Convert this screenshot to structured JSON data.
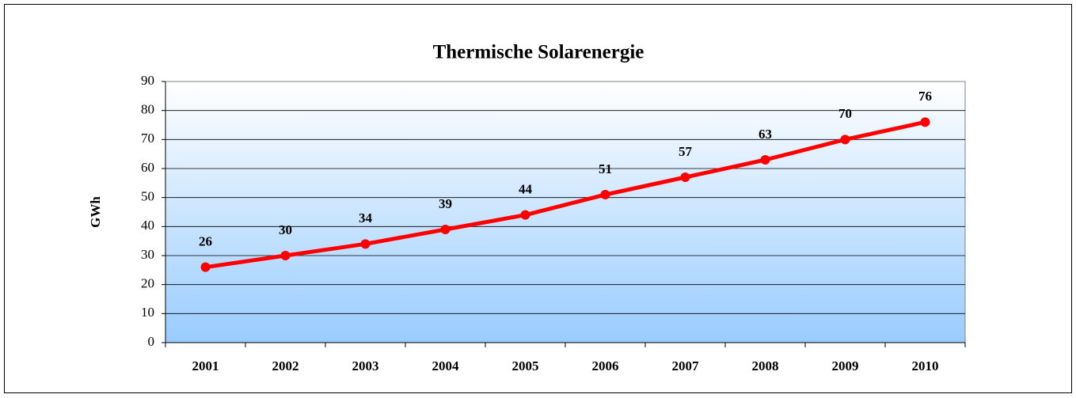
{
  "chart_data": {
    "type": "line",
    "title": "Thermische Solarenergie",
    "y_label": "GWh",
    "categories": [
      "2001",
      "2002",
      "2003",
      "2004",
      "2005",
      "2006",
      "2007",
      "2008",
      "2009",
      "2010"
    ],
    "series": [
      {
        "name": "Thermische Solarenergie",
        "color": "#ff0000",
        "values": [
          26,
          30,
          34,
          39,
          44,
          51,
          57,
          63,
          70,
          76
        ]
      }
    ],
    "ylim": [
      0,
      90
    ],
    "yticks": [
      0,
      10,
      20,
      30,
      40,
      50,
      60,
      70,
      80,
      90
    ],
    "grid": true
  }
}
